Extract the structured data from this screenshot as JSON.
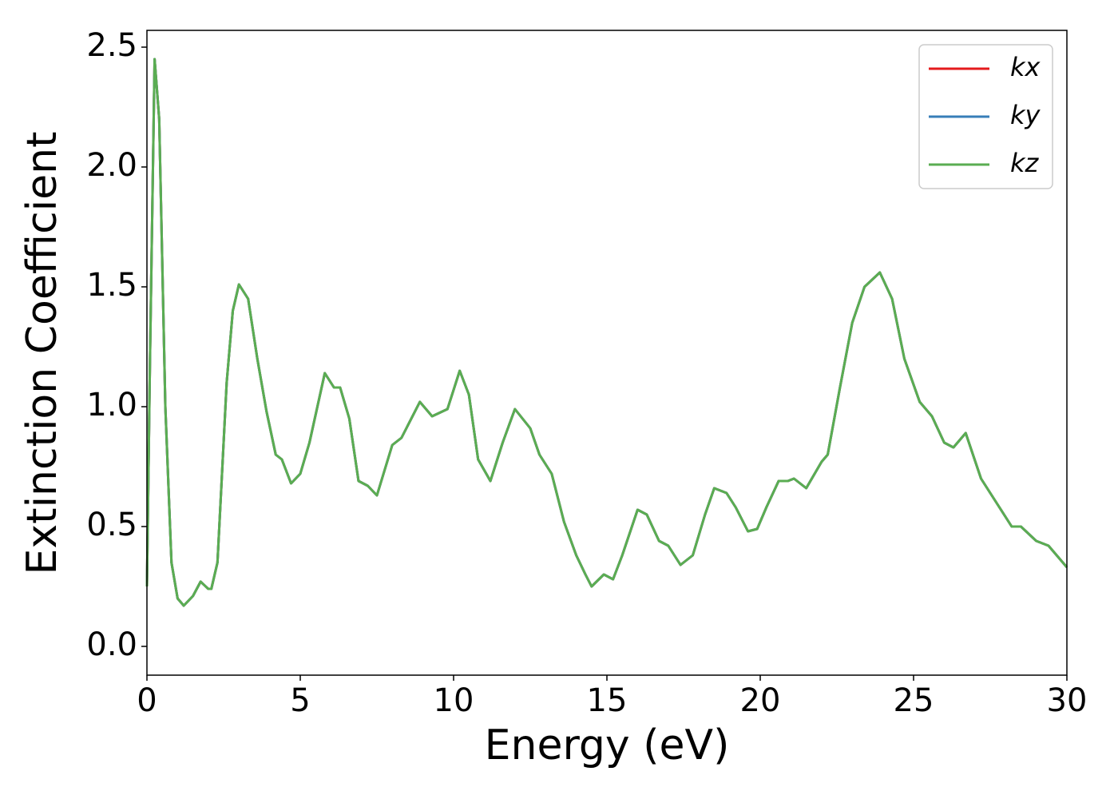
{
  "chart_data": {
    "type": "line",
    "xlabel": "Energy (eV)",
    "ylabel": "Extinction Coefficient",
    "xlim": [
      0,
      30
    ],
    "ylim": [
      -0.12,
      2.57
    ],
    "xticks": [
      0,
      5,
      10,
      15,
      20,
      25,
      30
    ],
    "yticks": [
      {
        "value": 0,
        "label": "0.0"
      },
      0.5,
      {
        "value": 1,
        "label": "1.0"
      },
      1.5,
      {
        "value": 2,
        "label": "2.0"
      },
      2.5
    ],
    "grid": false,
    "legend": "upper right",
    "x": [
      0.0,
      0.1,
      0.25,
      0.4,
      0.6,
      0.8,
      1.0,
      1.2,
      1.5,
      1.75,
      2.0,
      2.1,
      2.3,
      2.6,
      2.8,
      3.0,
      3.3,
      3.6,
      3.9,
      4.2,
      4.4,
      4.7,
      5.0,
      5.3,
      5.8,
      6.1,
      6.3,
      6.6,
      6.9,
      7.2,
      7.5,
      8.0,
      8.3,
      8.9,
      9.3,
      9.8,
      10.2,
      10.5,
      10.8,
      11.2,
      11.6,
      12.0,
      12.5,
      12.8,
      13.2,
      13.6,
      14.0,
      14.3,
      14.5,
      14.9,
      15.2,
      15.5,
      16.0,
      16.3,
      16.7,
      17.0,
      17.4,
      17.8,
      18.2,
      18.5,
      18.9,
      19.2,
      19.6,
      19.9,
      20.2,
      20.6,
      20.9,
      21.1,
      21.5,
      22.0,
      22.2,
      22.6,
      23.0,
      23.4,
      23.9,
      24.3,
      24.7,
      25.2,
      25.6,
      26.0,
      26.3,
      26.7,
      27.2,
      27.8,
      28.2,
      28.5,
      29.0,
      29.4,
      30.0
    ],
    "series": [
      {
        "name": "kx",
        "color": "#e41a1c",
        "values": [
          0.25,
          1.2,
          2.45,
          2.2,
          1.0,
          0.35,
          0.2,
          0.17,
          0.21,
          0.27,
          0.24,
          0.24,
          0.35,
          1.1,
          1.4,
          1.51,
          1.45,
          1.2,
          0.98,
          0.8,
          0.78,
          0.68,
          0.72,
          0.85,
          1.14,
          1.08,
          1.08,
          0.95,
          0.69,
          0.67,
          0.63,
          0.84,
          0.87,
          1.02,
          0.96,
          0.99,
          1.15,
          1.05,
          0.78,
          0.69,
          0.85,
          0.99,
          0.91,
          0.8,
          0.72,
          0.52,
          0.38,
          0.3,
          0.25,
          0.3,
          0.28,
          0.38,
          0.57,
          0.55,
          0.44,
          0.42,
          0.34,
          0.38,
          0.55,
          0.66,
          0.64,
          0.58,
          0.48,
          0.49,
          0.58,
          0.69,
          0.69,
          0.7,
          0.66,
          0.77,
          0.8,
          1.08,
          1.35,
          1.5,
          1.56,
          1.45,
          1.2,
          1.02,
          0.96,
          0.85,
          0.83,
          0.89,
          0.7,
          0.58,
          0.5,
          0.5,
          0.44,
          0.42,
          0.33
        ]
      },
      {
        "name": "ky",
        "color": "#377eb8",
        "values": [
          0.25,
          1.2,
          2.45,
          2.2,
          1.0,
          0.35,
          0.2,
          0.17,
          0.21,
          0.27,
          0.24,
          0.24,
          0.35,
          1.1,
          1.4,
          1.51,
          1.45,
          1.2,
          0.98,
          0.8,
          0.78,
          0.68,
          0.72,
          0.85,
          1.14,
          1.08,
          1.08,
          0.95,
          0.69,
          0.67,
          0.63,
          0.84,
          0.87,
          1.02,
          0.96,
          0.99,
          1.15,
          1.05,
          0.78,
          0.69,
          0.85,
          0.99,
          0.91,
          0.8,
          0.72,
          0.52,
          0.38,
          0.3,
          0.25,
          0.3,
          0.28,
          0.38,
          0.57,
          0.55,
          0.44,
          0.42,
          0.34,
          0.38,
          0.55,
          0.66,
          0.64,
          0.58,
          0.48,
          0.49,
          0.58,
          0.69,
          0.69,
          0.7,
          0.66,
          0.77,
          0.8,
          1.08,
          1.35,
          1.5,
          1.56,
          1.45,
          1.2,
          1.02,
          0.96,
          0.85,
          0.83,
          0.89,
          0.7,
          0.58,
          0.5,
          0.5,
          0.44,
          0.42,
          0.33
        ]
      },
      {
        "name": "kz",
        "color": "#5aad52",
        "values": [
          0.25,
          1.2,
          2.45,
          2.2,
          1.0,
          0.35,
          0.2,
          0.17,
          0.21,
          0.27,
          0.24,
          0.24,
          0.35,
          1.1,
          1.4,
          1.51,
          1.45,
          1.2,
          0.98,
          0.8,
          0.78,
          0.68,
          0.72,
          0.85,
          1.14,
          1.08,
          1.08,
          0.95,
          0.69,
          0.67,
          0.63,
          0.84,
          0.87,
          1.02,
          0.96,
          0.99,
          1.15,
          1.05,
          0.78,
          0.69,
          0.85,
          0.99,
          0.91,
          0.8,
          0.72,
          0.52,
          0.38,
          0.3,
          0.25,
          0.3,
          0.28,
          0.38,
          0.57,
          0.55,
          0.44,
          0.42,
          0.34,
          0.38,
          0.55,
          0.66,
          0.64,
          0.58,
          0.48,
          0.49,
          0.58,
          0.69,
          0.69,
          0.7,
          0.66,
          0.77,
          0.8,
          1.08,
          1.35,
          1.5,
          1.56,
          1.45,
          1.2,
          1.02,
          0.96,
          0.85,
          0.83,
          0.89,
          0.7,
          0.58,
          0.5,
          0.5,
          0.44,
          0.42,
          0.33
        ]
      }
    ]
  }
}
